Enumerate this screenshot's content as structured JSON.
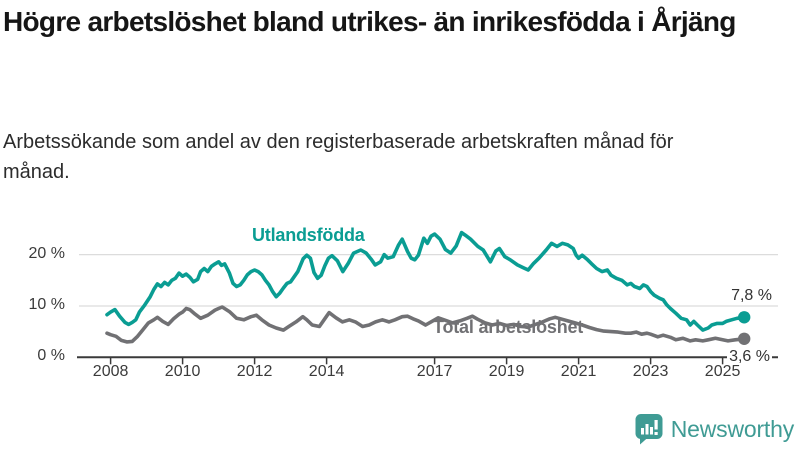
{
  "header": {
    "title": "Högre arbetslöshet bland utrikes- än inrikesfödda i Årjäng",
    "subtitle": "Arbetssökande som andel av den registerbaserade arbetskraften månad för månad."
  },
  "footer": {
    "brand": "Newsworthy"
  },
  "colors": {
    "accent_teal": "#0a9d93",
    "line_gray": "#717174",
    "title_text": "#161616",
    "subtitle_text": "#2c2c2c",
    "axis": "#3a3a3a",
    "gridline": "#dcdcdc",
    "background": "#ffffff",
    "logo_teal": "#3f9b94"
  },
  "chart_data": {
    "type": "line",
    "title": "Högre arbetslöshet bland utrikes- än inrikesfödda i Årjäng",
    "subtitle": "Arbetssökande som andel av den registerbaserade arbetskraften månad för månad.",
    "unit": "%",
    "grid": "horizontal-only",
    "legend_position": "inline-labels",
    "xlim": [
      2007.15,
      2026.55
    ],
    "ylim": [
      0,
      25.2
    ],
    "x_axis": {
      "ticks": [
        "2008",
        "2010",
        "2012",
        "2014",
        "2017",
        "2019",
        "2021",
        "2023",
        "2025"
      ],
      "tick_years": [
        2008,
        2010,
        2012,
        2014,
        2017,
        2019,
        2021,
        2023,
        2025
      ]
    },
    "y_axis": {
      "ticks": [
        {
          "value": 0,
          "label": "0 %"
        },
        {
          "value": 10,
          "label": "10 %"
        },
        {
          "value": 20,
          "label": "20 %"
        }
      ]
    },
    "series": [
      {
        "id": "utlandsfodda",
        "name": "Utlandsfödda",
        "color": "#0a9d93",
        "end_label": "7,8 %",
        "end_value": 7.8,
        "points": [
          [
            2007.9,
            8.3
          ],
          [
            2008.0,
            8.8
          ],
          [
            2008.12,
            9.3
          ],
          [
            2008.25,
            8.0
          ],
          [
            2008.4,
            6.8
          ],
          [
            2008.5,
            6.4
          ],
          [
            2008.6,
            6.8
          ],
          [
            2008.7,
            7.3
          ],
          [
            2008.8,
            8.8
          ],
          [
            2008.95,
            10.2
          ],
          [
            2009.1,
            11.8
          ],
          [
            2009.2,
            13.2
          ],
          [
            2009.3,
            14.3
          ],
          [
            2009.4,
            13.8
          ],
          [
            2009.5,
            14.6
          ],
          [
            2009.6,
            14.1
          ],
          [
            2009.7,
            15.0
          ],
          [
            2009.8,
            15.4
          ],
          [
            2009.9,
            16.4
          ],
          [
            2010.0,
            15.8
          ],
          [
            2010.1,
            16.2
          ],
          [
            2010.2,
            15.6
          ],
          [
            2010.3,
            14.7
          ],
          [
            2010.42,
            15.2
          ],
          [
            2010.5,
            16.7
          ],
          [
            2010.6,
            17.3
          ],
          [
            2010.7,
            16.7
          ],
          [
            2010.8,
            17.7
          ],
          [
            2010.9,
            18.2
          ],
          [
            2011.0,
            18.6
          ],
          [
            2011.08,
            17.9
          ],
          [
            2011.17,
            18.2
          ],
          [
            2011.3,
            16.4
          ],
          [
            2011.4,
            14.4
          ],
          [
            2011.5,
            13.8
          ],
          [
            2011.6,
            14.1
          ],
          [
            2011.7,
            15.0
          ],
          [
            2011.8,
            16.1
          ],
          [
            2011.9,
            16.7
          ],
          [
            2012.0,
            17.0
          ],
          [
            2012.1,
            16.7
          ],
          [
            2012.2,
            16.1
          ],
          [
            2012.3,
            15.0
          ],
          [
            2012.4,
            14.1
          ],
          [
            2012.5,
            12.8
          ],
          [
            2012.6,
            11.8
          ],
          [
            2012.7,
            12.5
          ],
          [
            2012.8,
            13.5
          ],
          [
            2012.9,
            14.4
          ],
          [
            2013.0,
            14.7
          ],
          [
            2013.1,
            15.7
          ],
          [
            2013.2,
            16.7
          ],
          [
            2013.35,
            19.2
          ],
          [
            2013.45,
            19.9
          ],
          [
            2013.55,
            19.3
          ],
          [
            2013.65,
            16.5
          ],
          [
            2013.75,
            15.4
          ],
          [
            2013.85,
            16.0
          ],
          [
            2013.95,
            17.8
          ],
          [
            2014.05,
            19.3
          ],
          [
            2014.15,
            19.8
          ],
          [
            2014.3,
            18.8
          ],
          [
            2014.45,
            16.7
          ],
          [
            2014.6,
            18.3
          ],
          [
            2014.75,
            20.3
          ],
          [
            2014.95,
            20.9
          ],
          [
            2015.1,
            20.3
          ],
          [
            2015.25,
            19.0
          ],
          [
            2015.35,
            18.0
          ],
          [
            2015.5,
            18.6
          ],
          [
            2015.6,
            20.0
          ],
          [
            2015.7,
            19.3
          ],
          [
            2015.85,
            19.6
          ],
          [
            2016.0,
            21.9
          ],
          [
            2016.1,
            23.0
          ],
          [
            2016.25,
            20.6
          ],
          [
            2016.35,
            19.3
          ],
          [
            2016.45,
            19.0
          ],
          [
            2016.55,
            19.9
          ],
          [
            2016.7,
            23.2
          ],
          [
            2016.8,
            22.2
          ],
          [
            2016.9,
            23.6
          ],
          [
            2017.0,
            24.0
          ],
          [
            2017.15,
            23.0
          ],
          [
            2017.3,
            21.0
          ],
          [
            2017.45,
            20.3
          ],
          [
            2017.6,
            21.7
          ],
          [
            2017.75,
            24.3
          ],
          [
            2017.85,
            23.8
          ],
          [
            2018.0,
            23.0
          ],
          [
            2018.2,
            21.6
          ],
          [
            2018.35,
            20.9
          ],
          [
            2018.55,
            18.6
          ],
          [
            2018.7,
            20.7
          ],
          [
            2018.8,
            21.2
          ],
          [
            2018.95,
            19.6
          ],
          [
            2019.1,
            19.0
          ],
          [
            2019.3,
            18.0
          ],
          [
            2019.45,
            17.5
          ],
          [
            2019.6,
            17.0
          ],
          [
            2019.75,
            18.3
          ],
          [
            2019.9,
            19.3
          ],
          [
            2020.1,
            20.9
          ],
          [
            2020.25,
            22.2
          ],
          [
            2020.4,
            21.6
          ],
          [
            2020.55,
            22.2
          ],
          [
            2020.7,
            21.9
          ],
          [
            2020.85,
            21.2
          ],
          [
            2020.93,
            19.9
          ],
          [
            2021.0,
            19.3
          ],
          [
            2021.1,
            19.9
          ],
          [
            2021.25,
            19.0
          ],
          [
            2021.35,
            18.3
          ],
          [
            2021.5,
            17.3
          ],
          [
            2021.65,
            16.7
          ],
          [
            2021.8,
            17.0
          ],
          [
            2021.9,
            16.0
          ],
          [
            2022.05,
            15.4
          ],
          [
            2022.2,
            15.0
          ],
          [
            2022.35,
            14.1
          ],
          [
            2022.45,
            14.4
          ],
          [
            2022.55,
            13.8
          ],
          [
            2022.7,
            13.4
          ],
          [
            2022.8,
            14.1
          ],
          [
            2022.9,
            13.8
          ],
          [
            2023.0,
            12.8
          ],
          [
            2023.1,
            12.1
          ],
          [
            2023.25,
            11.5
          ],
          [
            2023.35,
            11.2
          ],
          [
            2023.45,
            10.2
          ],
          [
            2023.55,
            9.5
          ],
          [
            2023.7,
            8.6
          ],
          [
            2023.85,
            7.6
          ],
          [
            2024.0,
            7.3
          ],
          [
            2024.1,
            6.3
          ],
          [
            2024.2,
            7.0
          ],
          [
            2024.3,
            6.3
          ],
          [
            2024.45,
            5.3
          ],
          [
            2024.6,
            5.7
          ],
          [
            2024.7,
            6.3
          ],
          [
            2024.85,
            6.6
          ],
          [
            2025.0,
            6.6
          ],
          [
            2025.1,
            7.0
          ],
          [
            2025.25,
            7.3
          ],
          [
            2025.4,
            7.6
          ],
          [
            2025.6,
            7.8
          ]
        ]
      },
      {
        "id": "total-arbetsloshet",
        "name": "Total arbetslöshet",
        "color": "#717174",
        "end_label": "3,6 %",
        "end_value": 3.6,
        "points": [
          [
            2007.9,
            4.7
          ],
          [
            2008.0,
            4.4
          ],
          [
            2008.15,
            4.1
          ],
          [
            2008.3,
            3.3
          ],
          [
            2008.45,
            3.0
          ],
          [
            2008.6,
            3.1
          ],
          [
            2008.75,
            4.1
          ],
          [
            2008.9,
            5.4
          ],
          [
            2009.05,
            6.7
          ],
          [
            2009.2,
            7.3
          ],
          [
            2009.3,
            7.8
          ],
          [
            2009.45,
            7.0
          ],
          [
            2009.6,
            6.4
          ],
          [
            2009.75,
            7.5
          ],
          [
            2009.9,
            8.4
          ],
          [
            2010.0,
            8.8
          ],
          [
            2010.1,
            9.5
          ],
          [
            2010.2,
            9.3
          ],
          [
            2010.35,
            8.4
          ],
          [
            2010.5,
            7.6
          ],
          [
            2010.7,
            8.2
          ],
          [
            2010.9,
            9.2
          ],
          [
            2011.0,
            9.5
          ],
          [
            2011.1,
            9.8
          ],
          [
            2011.3,
            8.9
          ],
          [
            2011.5,
            7.6
          ],
          [
            2011.7,
            7.3
          ],
          [
            2011.9,
            7.9
          ],
          [
            2012.05,
            8.2
          ],
          [
            2012.2,
            7.3
          ],
          [
            2012.4,
            6.3
          ],
          [
            2012.6,
            5.7
          ],
          [
            2012.8,
            5.3
          ],
          [
            2012.95,
            6.0
          ],
          [
            2013.15,
            6.9
          ],
          [
            2013.34,
            7.9
          ],
          [
            2013.45,
            7.3
          ],
          [
            2013.6,
            6.3
          ],
          [
            2013.8,
            6.0
          ],
          [
            2014.0,
            8.0
          ],
          [
            2014.07,
            8.7
          ],
          [
            2014.26,
            7.7
          ],
          [
            2014.44,
            6.9
          ],
          [
            2014.63,
            7.3
          ],
          [
            2014.8,
            6.9
          ],
          [
            2015.0,
            6.0
          ],
          [
            2015.18,
            6.3
          ],
          [
            2015.36,
            6.9
          ],
          [
            2015.55,
            7.3
          ],
          [
            2015.73,
            6.9
          ],
          [
            2015.9,
            7.3
          ],
          [
            2016.1,
            7.9
          ],
          [
            2016.25,
            8.0
          ],
          [
            2016.4,
            7.5
          ],
          [
            2016.55,
            7.1
          ],
          [
            2016.75,
            6.3
          ],
          [
            2016.9,
            6.9
          ],
          [
            2017.1,
            7.7
          ],
          [
            2017.3,
            7.2
          ],
          [
            2017.5,
            6.7
          ],
          [
            2017.7,
            7.1
          ],
          [
            2017.9,
            7.6
          ],
          [
            2018.05,
            8.0
          ],
          [
            2018.2,
            7.4
          ],
          [
            2018.4,
            6.7
          ],
          [
            2018.6,
            6.3
          ],
          [
            2018.8,
            6.6
          ],
          [
            2019.0,
            6.2
          ],
          [
            2019.2,
            6.4
          ],
          [
            2019.4,
            6.0
          ],
          [
            2019.6,
            5.9
          ],
          [
            2019.8,
            6.4
          ],
          [
            2020.0,
            6.9
          ],
          [
            2020.2,
            7.5
          ],
          [
            2020.35,
            7.8
          ],
          [
            2020.5,
            7.5
          ],
          [
            2020.7,
            7.1
          ],
          [
            2020.9,
            6.7
          ],
          [
            2021.1,
            6.3
          ],
          [
            2021.3,
            5.8
          ],
          [
            2021.5,
            5.4
          ],
          [
            2021.7,
            5.1
          ],
          [
            2021.9,
            5.0
          ],
          [
            2022.1,
            4.9
          ],
          [
            2022.3,
            4.7
          ],
          [
            2022.45,
            4.7
          ],
          [
            2022.6,
            4.9
          ],
          [
            2022.75,
            4.5
          ],
          [
            2022.9,
            4.7
          ],
          [
            2023.0,
            4.5
          ],
          [
            2023.2,
            4.0
          ],
          [
            2023.35,
            4.3
          ],
          [
            2023.55,
            3.9
          ],
          [
            2023.7,
            3.4
          ],
          [
            2023.9,
            3.7
          ],
          [
            2024.1,
            3.2
          ],
          [
            2024.25,
            3.4
          ],
          [
            2024.45,
            3.2
          ],
          [
            2024.6,
            3.4
          ],
          [
            2024.8,
            3.7
          ],
          [
            2025.0,
            3.4
          ],
          [
            2025.15,
            3.2
          ],
          [
            2025.35,
            3.4
          ],
          [
            2025.6,
            3.6
          ]
        ]
      }
    ]
  }
}
